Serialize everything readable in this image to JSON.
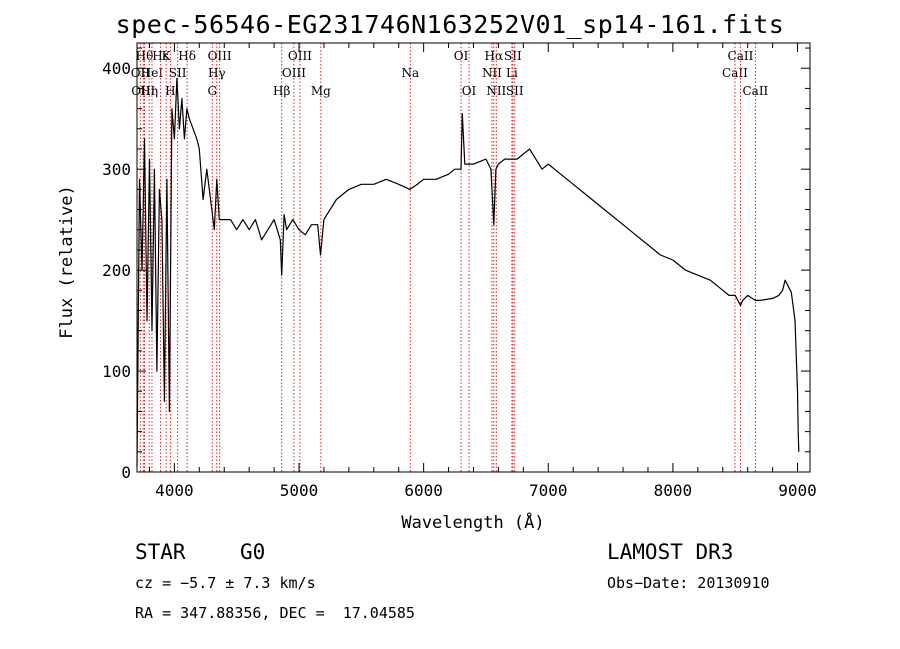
{
  "chart_data": {
    "type": "line",
    "title": "spec-56546-EG231746N163252V01_sp14-161.fits",
    "xlabel": "Wavelength (Å)",
    "ylabel": "Flux (relative)",
    "xlim": [
      3700,
      9100
    ],
    "ylim": [
      0,
      425
    ],
    "x_ticks": [
      {
        "value": 4000,
        "label": "4000"
      },
      {
        "value": 5000,
        "label": "5000"
      },
      {
        "value": 6000,
        "label": "6000"
      },
      {
        "value": 7000,
        "label": "7000"
      },
      {
        "value": 8000,
        "label": "8000"
      },
      {
        "value": 9000,
        "label": "9000"
      }
    ],
    "y_ticks": [
      {
        "value": 0,
        "label": "0"
      },
      {
        "value": 100,
        "label": "100"
      },
      {
        "value": 200,
        "label": "200"
      },
      {
        "value": 300,
        "label": "300"
      },
      {
        "value": 400,
        "label": "400"
      }
    ],
    "series": [
      {
        "name": "spectrum",
        "x": [
          3700,
          3720,
          3740,
          3760,
          3780,
          3800,
          3820,
          3840,
          3860,
          3880,
          3900,
          3920,
          3940,
          3960,
          3980,
          4000,
          4020,
          4040,
          4060,
          4080,
          4100,
          4120,
          4150,
          4180,
          4200,
          4230,
          4260,
          4300,
          4320,
          4340,
          4360,
          4400,
          4450,
          4500,
          4550,
          4600,
          4650,
          4700,
          4750,
          4800,
          4850,
          4861,
          4880,
          4900,
          4950,
          5000,
          5050,
          5100,
          5150,
          5172,
          5200,
          5300,
          5400,
          5500,
          5600,
          5700,
          5800,
          5890,
          5950,
          6000,
          6100,
          6200,
          6250,
          6300,
          6310,
          6330,
          6400,
          6500,
          6540,
          6563,
          6580,
          6600,
          6650,
          6700,
          6750,
          6800,
          6850,
          6900,
          6950,
          7000,
          7100,
          7200,
          7300,
          7400,
          7500,
          7600,
          7700,
          7800,
          7900,
          8000,
          8100,
          8200,
          8300,
          8400,
          8450,
          8500,
          8542,
          8560,
          8600,
          8662,
          8700,
          8800,
          8850,
          8880,
          8900,
          8950,
          8980,
          9000,
          9005,
          9010
        ],
        "y": [
          5,
          290,
          200,
          330,
          150,
          310,
          140,
          300,
          100,
          280,
          250,
          70,
          290,
          60,
          360,
          330,
          390,
          340,
          370,
          330,
          360,
          350,
          340,
          330,
          320,
          270,
          300,
          260,
          240,
          290,
          250,
          250,
          250,
          240,
          250,
          240,
          250,
          230,
          240,
          250,
          230,
          195,
          255,
          240,
          250,
          240,
          235,
          245,
          245,
          215,
          250,
          270,
          280,
          285,
          285,
          290,
          285,
          280,
          285,
          290,
          290,
          295,
          300,
          300,
          355,
          305,
          305,
          310,
          300,
          245,
          300,
          305,
          310,
          310,
          310,
          315,
          320,
          310,
          300,
          305,
          295,
          285,
          275,
          265,
          255,
          245,
          235,
          225,
          215,
          210,
          200,
          195,
          190,
          180,
          175,
          175,
          165,
          170,
          175,
          170,
          170,
          172,
          175,
          180,
          190,
          178,
          150,
          80,
          40,
          20
        ]
      }
    ],
    "lines": [
      {
        "x": 3727,
        "label": "OII",
        "row": 1
      },
      {
        "x": 3750,
        "label": "OIII",
        "row": 2
      },
      {
        "x": 3760,
        "label": "Hθ",
        "row": 0
      },
      {
        "x": 3798,
        "label": "Hη",
        "row": 2
      },
      {
        "x": 3820,
        "label": "HeI",
        "row": 1
      },
      {
        "x": 3889,
        "label": "Hε",
        "row": 0
      },
      {
        "x": 3934,
        "label": "K",
        "row": 0
      },
      {
        "x": 3968,
        "label": "H",
        "row": 2
      },
      {
        "x": 4026,
        "label": "SII",
        "row": 1
      },
      {
        "x": 4102,
        "label": "Hδ",
        "row": 0
      },
      {
        "x": 4304,
        "label": "G",
        "row": 2
      },
      {
        "x": 4340,
        "label": "Hγ",
        "row": 1
      },
      {
        "x": 4363,
        "label": "OIII",
        "row": 0
      },
      {
        "x": 4861,
        "label": "Hβ",
        "row": 2
      },
      {
        "x": 4959,
        "label": "OIII",
        "row": 1
      },
      {
        "x": 5007,
        "label": "OIII",
        "row": 0
      },
      {
        "x": 5175,
        "label": "Mg",
        "row": 2
      },
      {
        "x": 5893,
        "label": "Na",
        "row": 1
      },
      {
        "x": 6300,
        "label": "OI",
        "row": 0
      },
      {
        "x": 6364,
        "label": "OI",
        "row": 2
      },
      {
        "x": 6548,
        "label": "NII",
        "row": 1
      },
      {
        "x": 6563,
        "label": "Hα",
        "row": 0
      },
      {
        "x": 6583,
        "label": "NII",
        "row": 2
      },
      {
        "x": 6708,
        "label": "Li",
        "row": 1
      },
      {
        "x": 6716,
        "label": "SII",
        "row": 0
      },
      {
        "x": 6731,
        "label": "SII",
        "row": 2
      },
      {
        "x": 8498,
        "label": "CaII",
        "row": 1
      },
      {
        "x": 8542,
        "label": "CaII",
        "row": 0
      },
      {
        "x": 8662,
        "label": "CaII",
        "row": 2
      }
    ]
  },
  "info": {
    "class": "STAR",
    "subclass": "G0",
    "survey": "LAMOST DR3",
    "cz": "cz = −5.7 ± 7.3 km/s",
    "obs_date": "Obs−Date: 20130910",
    "coords": "RA = 347.88356, DEC =  17.04585"
  }
}
